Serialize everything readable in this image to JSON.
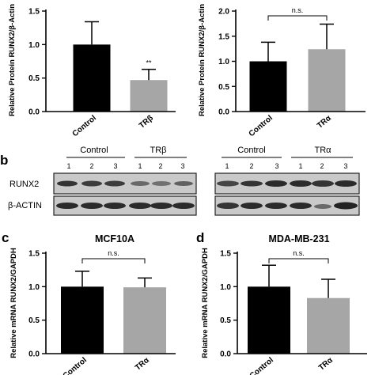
{
  "panels": {
    "b_label": "b",
    "c_label": "c",
    "d_label": "d"
  },
  "chart_data": [
    {
      "id": "a-left",
      "type": "bar",
      "title": "",
      "ylabel": "Relative Protein RUNX2/β-Actin",
      "categories": [
        "Control",
        "TRβ"
      ],
      "values": [
        1.0,
        0.47
      ],
      "errors": [
        0.34,
        0.16
      ],
      "colors": [
        "#000000",
        "#a6a6a6"
      ],
      "ylim": [
        0,
        1.5
      ],
      "yticks": [
        "0.0",
        "0.5",
        "1.0",
        "1.5"
      ],
      "annotation": "**"
    },
    {
      "id": "a-right",
      "type": "bar",
      "title": "",
      "ylabel": "Relative Protein RUNX2/β-Actin",
      "categories": [
        "Control",
        "TRα"
      ],
      "values": [
        1.0,
        1.24
      ],
      "errors": [
        0.38,
        0.5
      ],
      "colors": [
        "#000000",
        "#a6a6a6"
      ],
      "ylim": [
        0,
        2.0
      ],
      "yticks": [
        "0.0",
        "0.5",
        "1.0",
        "1.5",
        "2.0"
      ],
      "annotation": "n.s."
    },
    {
      "id": "c",
      "type": "bar",
      "title": "MCF10A",
      "ylabel": "Relative mRNA RUNX2/GAPDH",
      "categories": [
        "Control",
        "TRα"
      ],
      "values": [
        1.0,
        0.99
      ],
      "errors": [
        0.23,
        0.14
      ],
      "colors": [
        "#000000",
        "#a6a6a6"
      ],
      "ylim": [
        0,
        1.5
      ],
      "yticks": [
        "0.0",
        "0.5",
        "1.0",
        "1.5"
      ],
      "annotation": "n.s."
    },
    {
      "id": "d",
      "type": "bar",
      "title": "MDA-MB-231",
      "ylabel": "Relative mRNA RUNX2/GAPDH",
      "categories": [
        "Control",
        "TRα"
      ],
      "values": [
        1.0,
        0.83
      ],
      "errors": [
        0.32,
        0.28
      ],
      "colors": [
        "#000000",
        "#a6a6a6"
      ],
      "ylim": [
        0,
        1.5
      ],
      "yticks": [
        "0.0",
        "0.5",
        "1.0",
        "1.5"
      ],
      "annotation": "n.s."
    }
  ],
  "blots": {
    "row_labels": [
      "RUNX2",
      "β-ACTIN"
    ],
    "left": {
      "groups": [
        "Control",
        "TRβ"
      ],
      "lanes": [
        "1",
        "2",
        "3",
        "1",
        "2",
        "3"
      ]
    },
    "right": {
      "groups": [
        "Control",
        "TRα"
      ],
      "lanes": [
        "1",
        "2",
        "3",
        "1",
        "2",
        "3"
      ]
    }
  }
}
